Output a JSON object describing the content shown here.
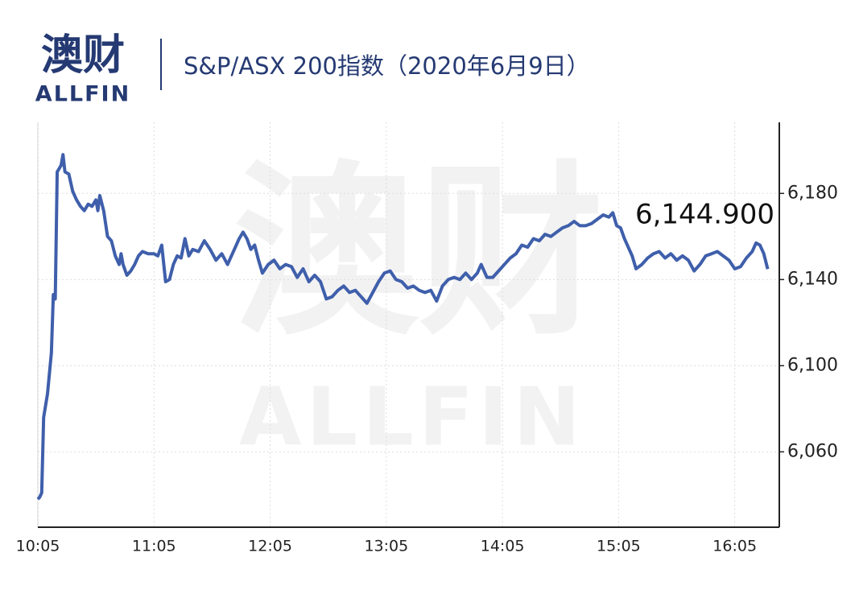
{
  "logo": {
    "cn": "澳财",
    "en": "ALLFIN"
  },
  "watermark": {
    "cn": "澳财",
    "en": "ALLFIN"
  },
  "chart_data": {
    "type": "line",
    "title": "S&P/ASX 200指数（2020年6月9日）",
    "x": [
      "10:05",
      "10:06",
      "10:07",
      "10:08",
      "10:10",
      "10:12",
      "10:13",
      "10:14",
      "10:15",
      "10:17",
      "10:18",
      "10:19",
      "10:21",
      "10:23",
      "10:25",
      "10:27",
      "10:29",
      "10:31",
      "10:33",
      "10:35",
      "10:36",
      "10:37",
      "10:39",
      "10:41",
      "10:43",
      "10:45",
      "10:47",
      "10:48",
      "10:49",
      "10:51",
      "10:53",
      "10:55",
      "10:57",
      "10:59",
      "11:02",
      "11:05",
      "11:07",
      "11:09",
      "11:11",
      "11:13",
      "11:15",
      "11:17",
      "11:19",
      "11:21",
      "11:23",
      "11:25",
      "11:28",
      "11:31",
      "11:34",
      "11:37",
      "11:40",
      "11:43",
      "11:46",
      "11:49",
      "11:51",
      "11:53",
      "11:55",
      "11:57",
      "11:59",
      "12:01",
      "12:04",
      "12:07",
      "12:10",
      "12:13",
      "12:16",
      "12:19",
      "12:22",
      "12:25",
      "12:28",
      "12:31",
      "12:34",
      "12:37",
      "12:40",
      "12:43",
      "12:46",
      "12:49",
      "12:52",
      "12:55",
      "12:58",
      "13:01",
      "13:04",
      "13:07",
      "13:10",
      "13:13",
      "13:16",
      "13:19",
      "13:22",
      "13:25",
      "13:28",
      "13:31",
      "13:34",
      "13:37",
      "13:40",
      "13:43",
      "13:46",
      "13:49",
      "13:52",
      "13:54",
      "13:57",
      "14:00",
      "14:03",
      "14:06",
      "14:09",
      "14:12",
      "14:15",
      "14:18",
      "14:21",
      "14:24",
      "14:27",
      "14:30",
      "14:33",
      "14:36",
      "14:39",
      "14:42",
      "14:45",
      "14:48",
      "14:51",
      "14:54",
      "14:57",
      "15:00",
      "15:02",
      "15:04",
      "15:06",
      "15:08",
      "15:10",
      "15:12",
      "15:14",
      "15:17",
      "15:20",
      "15:23",
      "15:26",
      "15:29",
      "15:32",
      "15:35",
      "15:38",
      "15:41",
      "15:44",
      "15:47",
      "15:50",
      "15:53",
      "15:56",
      "15:59",
      "16:02",
      "16:05",
      "16:08",
      "16:11",
      "16:14",
      "16:16",
      "16:18",
      "16:20",
      "16:22"
    ],
    "series": [
      {
        "name": "S&P/ASX 200",
        "color": "#3f5fab",
        "values": [
          6038,
          6039,
          6041,
          6076,
          6087,
          6106,
          6133,
          6131,
          6190,
          6193,
          6198,
          6190,
          6189,
          6181,
          6177,
          6174,
          6172,
          6175,
          6174,
          6177,
          6172,
          6179,
          6172,
          6160,
          6158,
          6151,
          6147,
          6152,
          6147,
          6142,
          6144,
          6147,
          6151,
          6153,
          6152,
          6152,
          6151,
          6156,
          6139,
          6140,
          6147,
          6151,
          6150,
          6159,
          6151,
          6154,
          6153,
          6158,
          6154,
          6149,
          6152,
          6147,
          6153,
          6159,
          6162,
          6159,
          6154,
          6156,
          6149,
          6143,
          6147,
          6149,
          6145,
          6147,
          6146,
          6141,
          6145,
          6139,
          6142,
          6139,
          6131,
          6132,
          6135,
          6137,
          6134,
          6135,
          6132,
          6129,
          6134,
          6139,
          6143,
          6144,
          6140,
          6139,
          6136,
          6137,
          6135,
          6134,
          6135,
          6130,
          6137,
          6140,
          6141,
          6140,
          6143,
          6140,
          6143,
          6147,
          6141,
          6141,
          6144,
          6147,
          6150,
          6152,
          6156,
          6155,
          6159,
          6158,
          6161,
          6160,
          6162,
          6164,
          6165,
          6167,
          6165,
          6165,
          6166,
          6168,
          6170,
          6169,
          6171,
          6165,
          6164,
          6159,
          6155,
          6151,
          6145,
          6147,
          6150,
          6152,
          6153,
          6150,
          6152,
          6149,
          6151,
          6149,
          6144,
          6147,
          6151,
          6152,
          6153,
          6151,
          6149,
          6145,
          6146,
          6150,
          6153,
          6157,
          6156,
          6152,
          6144.9
        ]
      }
    ],
    "annotation": "6,144.900",
    "xlim": [
      "10:05",
      "16:28"
    ],
    "xticks": [
      "10:05",
      "11:05",
      "12:05",
      "13:05",
      "14:05",
      "15:05",
      "16:05"
    ],
    "ylim": [
      6025,
      6213
    ],
    "yticks": [
      {
        "value": 6060,
        "label": "6,060"
      },
      {
        "value": 6100,
        "label": "6,100"
      },
      {
        "value": 6140,
        "label": "6,140"
      },
      {
        "value": 6180,
        "label": "6,180"
      }
    ],
    "y_axis_side": "right",
    "grid": true
  }
}
